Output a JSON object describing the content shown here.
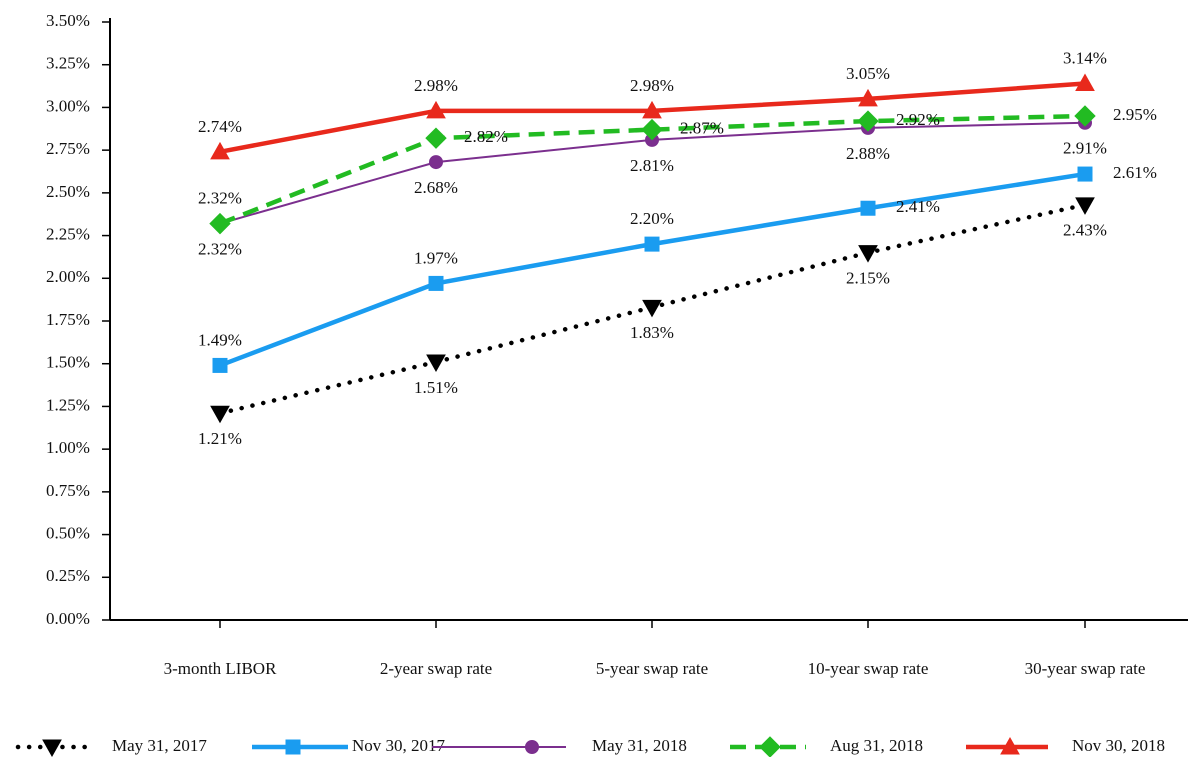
{
  "chart_data": {
    "type": "line",
    "categories": [
      "3-month LIBOR",
      "2-year swap rate",
      "5-year swap rate",
      "10-year swap rate",
      "30-year swap rate"
    ],
    "ylim": [
      0,
      3.5
    ],
    "yticks": [
      {
        "value": 0,
        "label": "0.00%"
      },
      {
        "value": 0.25,
        "label": "0.25%"
      },
      {
        "value": 0.5,
        "label": "0.50%"
      },
      {
        "value": 0.75,
        "label": "0.75%"
      },
      {
        "value": 1,
        "label": "1.00%"
      },
      {
        "value": 1.25,
        "label": "1.25%"
      },
      {
        "value": 1.5,
        "label": "1.50%"
      },
      {
        "value": 1.75,
        "label": "1.75%"
      },
      {
        "value": 2,
        "label": "2.00%"
      },
      {
        "value": 2.25,
        "label": "2.25%"
      },
      {
        "value": 2.5,
        "label": "2.50%"
      },
      {
        "value": 2.75,
        "label": "2.75%"
      },
      {
        "value": 3,
        "label": "3.00%"
      },
      {
        "value": 3.25,
        "label": "3.25%"
      },
      {
        "value": 3.5,
        "label": "3.50%"
      }
    ],
    "series": [
      {
        "name": "May 31, 2017",
        "color": "#000000",
        "values": [
          1.21,
          1.51,
          1.83,
          2.15,
          2.43
        ],
        "value_labels": [
          "1.21%",
          "1.51%",
          "1.83%",
          "2.15%",
          "2.43%"
        ]
      },
      {
        "name": "Nov 30, 2017",
        "color": "#1a9cf0",
        "values": [
          1.49,
          1.97,
          2.2,
          2.41,
          2.61
        ],
        "value_labels": [
          "1.49%",
          "1.97%",
          "2.20%",
          "2.41%",
          "2.61%"
        ]
      },
      {
        "name": "May 31, 2018",
        "color": "#7b2f8e",
        "values": [
          2.32,
          2.68,
          2.81,
          2.88,
          2.91
        ],
        "value_labels": [
          "2.32%",
          "2.68%",
          "2.81%",
          "2.88%",
          "2.91%"
        ]
      },
      {
        "name": "Aug 31, 2018",
        "color": "#22bb22",
        "values": [
          2.32,
          2.82,
          2.87,
          2.92,
          2.95
        ],
        "value_labels": [
          "2.32%",
          "2.82%",
          "2.87%",
          "2.92%",
          "2.95%"
        ]
      },
      {
        "name": "Nov 30, 2018",
        "color": "#e8291c",
        "values": [
          2.74,
          2.98,
          2.98,
          3.05,
          3.14
        ],
        "value_labels": [
          "2.74%",
          "2.98%",
          "2.98%",
          "3.05%",
          "3.14%"
        ]
      }
    ]
  }
}
